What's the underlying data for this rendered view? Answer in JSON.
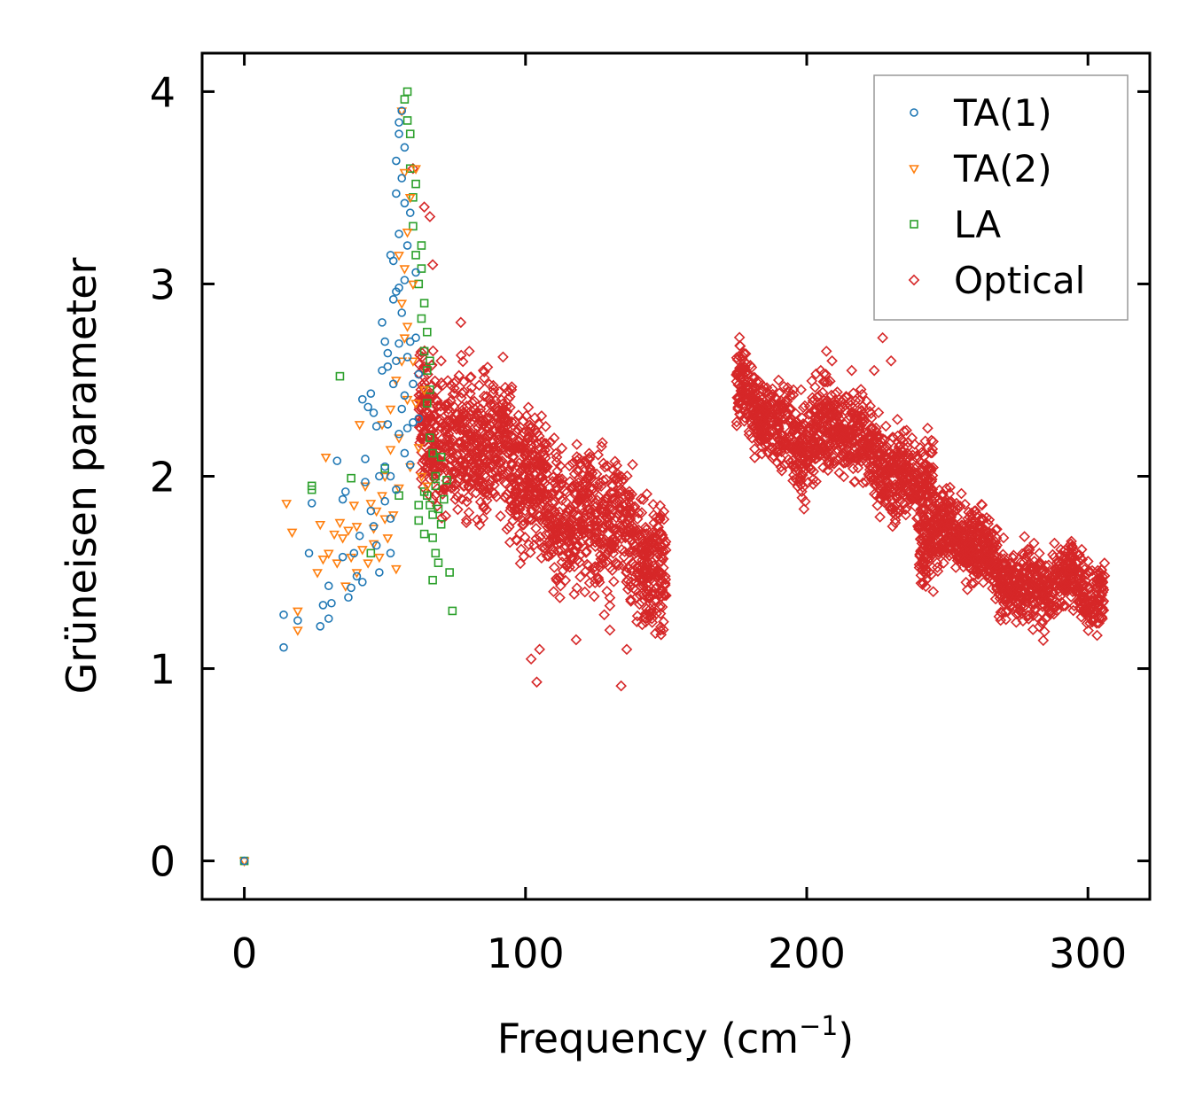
{
  "chart_data": {
    "type": "scatter",
    "title": "",
    "xlabel": "Frequency (cm",
    "xlabel_sup": "−1",
    "xlabel_end": ")",
    "ylabel": "Grüneisen parameter",
    "xlim": [
      -15,
      322
    ],
    "ylim": [
      -0.2,
      4.2
    ],
    "xticks": [
      0,
      100,
      200,
      300
    ],
    "xtick_labels": [
      "0",
      "100",
      "200",
      "300"
    ],
    "yticks": [
      0,
      1,
      2,
      3,
      4
    ],
    "ytick_labels": [
      "0",
      "1",
      "2",
      "3",
      "4"
    ],
    "grid": false,
    "legend_position": "top-right",
    "series": [
      {
        "name": "TA(1)",
        "marker": "circle",
        "color": "#1f77b4",
        "points": [
          [
            0,
            0
          ],
          [
            14,
            1.28
          ],
          [
            14,
            1.11
          ],
          [
            19,
            1.25
          ],
          [
            23,
            1.6
          ],
          [
            24,
            1.86
          ],
          [
            27,
            1.22
          ],
          [
            28,
            1.33
          ],
          [
            30,
            1.26
          ],
          [
            30,
            1.43
          ],
          [
            31,
            1.34
          ],
          [
            33,
            2.08
          ],
          [
            35,
            1.58
          ],
          [
            35,
            1.88
          ],
          [
            36,
            1.92
          ],
          [
            37,
            1.37
          ],
          [
            38,
            1.42
          ],
          [
            39,
            1.6
          ],
          [
            40,
            1.48
          ],
          [
            41,
            1.69
          ],
          [
            42,
            1.45
          ],
          [
            42,
            2.4
          ],
          [
            43,
            1.97
          ],
          [
            43,
            2.09
          ],
          [
            44,
            2.36
          ],
          [
            45,
            1.82
          ],
          [
            45,
            2.43
          ],
          [
            46,
            1.74
          ],
          [
            46,
            2.33
          ],
          [
            47,
            1.64
          ],
          [
            47,
            2.26
          ],
          [
            48,
            1.5
          ],
          [
            48,
            2.0
          ],
          [
            49,
            2.55
          ],
          [
            49,
            2.8
          ],
          [
            50,
            1.87
          ],
          [
            50,
            2.05
          ],
          [
            50,
            2.7
          ],
          [
            51,
            2.27
          ],
          [
            51,
            2.57
          ],
          [
            51,
            2.64
          ],
          [
            52,
            1.6
          ],
          [
            52,
            1.78
          ],
          [
            52,
            2.0
          ],
          [
            52,
            3.15
          ],
          [
            53,
            2.48
          ],
          [
            53,
            2.92
          ],
          [
            53,
            3.12
          ],
          [
            54,
            1.93
          ],
          [
            54,
            2.6
          ],
          [
            54,
            2.96
          ],
          [
            54,
            3.47
          ],
          [
            54,
            3.64
          ],
          [
            55,
            2.22
          ],
          [
            55,
            2.69
          ],
          [
            55,
            2.98
          ],
          [
            55,
            3.26
          ],
          [
            55,
            3.78
          ],
          [
            55,
            3.84
          ],
          [
            56,
            2.35
          ],
          [
            56,
            2.85
          ],
          [
            56,
            3.55
          ],
          [
            56,
            3.9
          ],
          [
            57,
            2.12
          ],
          [
            57,
            2.42
          ],
          [
            57,
            3.02
          ],
          [
            57,
            3.42
          ],
          [
            57,
            3.71
          ],
          [
            58,
            2.25
          ],
          [
            58,
            2.62
          ],
          [
            58,
            3.2
          ],
          [
            59,
            2.06
          ],
          [
            59,
            2.7
          ],
          [
            59,
            3.37
          ],
          [
            60,
            2.28
          ],
          [
            60,
            2.48
          ],
          [
            61,
            2.72
          ],
          [
            61,
            3.06
          ],
          [
            62,
            2.3
          ],
          [
            62,
            2.53
          ]
        ]
      },
      {
        "name": "TA(2)",
        "marker": "triangle-down",
        "color": "#ff7f0e",
        "points": [
          [
            0,
            0
          ],
          [
            15,
            1.86
          ],
          [
            17,
            1.71
          ],
          [
            19,
            1.3
          ],
          [
            19,
            1.2
          ],
          [
            26,
            1.5
          ],
          [
            27,
            1.75
          ],
          [
            28,
            1.57
          ],
          [
            29,
            2.1
          ],
          [
            30,
            1.6
          ],
          [
            32,
            1.7
          ],
          [
            33,
            1.55
          ],
          [
            34,
            1.76
          ],
          [
            35,
            1.68
          ],
          [
            36,
            1.43
          ],
          [
            37,
            1.72
          ],
          [
            38,
            1.58
          ],
          [
            39,
            1.85
          ],
          [
            40,
            1.74
          ],
          [
            40,
            1.5
          ],
          [
            41,
            2.27
          ],
          [
            42,
            1.62
          ],
          [
            43,
            1.95
          ],
          [
            44,
            1.55
          ],
          [
            45,
            1.86
          ],
          [
            46,
            1.73
          ],
          [
            46,
            1.65
          ],
          [
            47,
            1.82
          ],
          [
            48,
            1.58
          ],
          [
            49,
            1.9
          ],
          [
            49,
            2.27
          ],
          [
            50,
            1.78
          ],
          [
            50,
            2.0
          ],
          [
            51,
            1.68
          ],
          [
            52,
            2.14
          ],
          [
            52,
            2.35
          ],
          [
            53,
            1.8
          ],
          [
            54,
            2.5
          ],
          [
            54,
            1.52
          ],
          [
            55,
            1.94
          ],
          [
            55,
            2.2
          ],
          [
            55,
            3.15
          ],
          [
            56,
            2.6
          ],
          [
            56,
            2.9
          ],
          [
            56,
            3.9
          ],
          [
            57,
            2.72
          ],
          [
            57,
            3.08
          ],
          [
            57,
            3.58
          ],
          [
            58,
            2.4
          ],
          [
            58,
            2.78
          ],
          [
            58,
            3.27
          ],
          [
            59,
            2.05
          ],
          [
            59,
            3.45
          ],
          [
            60,
            2.6
          ],
          [
            60,
            3.0
          ],
          [
            61,
            2.38
          ],
          [
            61,
            3.6
          ],
          [
            62,
            2.15
          ],
          [
            63,
            2.0
          ],
          [
            64,
            2.45
          ],
          [
            65,
            1.95
          ]
        ]
      },
      {
        "name": "LA",
        "marker": "square",
        "color": "#2ca02c",
        "points": [
          [
            0,
            0
          ],
          [
            24,
            1.93
          ],
          [
            24,
            1.95
          ],
          [
            34,
            2.52
          ],
          [
            38,
            1.99
          ],
          [
            45,
            1.6
          ],
          [
            50,
            2.04
          ],
          [
            55,
            1.9
          ],
          [
            57,
            3.96
          ],
          [
            58,
            4.0
          ],
          [
            58,
            3.85
          ],
          [
            59,
            3.78
          ],
          [
            59,
            3.6
          ],
          [
            60,
            3.45
          ],
          [
            60,
            3.3
          ],
          [
            61,
            3.52
          ],
          [
            61,
            3.15
          ],
          [
            62,
            3.0
          ],
          [
            62,
            1.77
          ],
          [
            62,
            1.85
          ],
          [
            63,
            2.82
          ],
          [
            63,
            3.2
          ],
          [
            63,
            3.08
          ],
          [
            64,
            2.65
          ],
          [
            64,
            2.9
          ],
          [
            64,
            1.92
          ],
          [
            64,
            1.7
          ],
          [
            65,
            2.55
          ],
          [
            65,
            2.75
          ],
          [
            65,
            2.38
          ],
          [
            65,
            1.9
          ],
          [
            66,
            2.2
          ],
          [
            66,
            2.6
          ],
          [
            66,
            2.45
          ],
          [
            66,
            1.85
          ],
          [
            67,
            2.12
          ],
          [
            67,
            1.8
          ],
          [
            67,
            1.68
          ],
          [
            67,
            1.46
          ],
          [
            68,
            2.0
          ],
          [
            68,
            1.95
          ],
          [
            68,
            1.6
          ],
          [
            69,
            1.83
          ],
          [
            69,
            1.55
          ],
          [
            70,
            1.75
          ],
          [
            70,
            2.1
          ],
          [
            71,
            1.88
          ],
          [
            72,
            1.98
          ],
          [
            73,
            1.5
          ],
          [
            74,
            1.3
          ]
        ]
      },
      {
        "name": "Optical",
        "marker": "diamond",
        "color": "#d62728",
        "points": [],
        "clusters": [
          {
            "x": [
              62,
              150
            ],
            "y_start": [
              2.35,
              1.5
            ],
            "spread": 0.48,
            "count": 1500
          },
          {
            "x": [
              175,
              245
            ],
            "y_start": [
              2.38,
              2.0
            ],
            "spread": 0.32,
            "count": 1100
          },
          {
            "x": [
              240,
              306
            ],
            "y_start": [
              1.7,
              1.33
            ],
            "spread": 0.26,
            "count": 1000
          }
        ],
        "outliers": [
          [
            60,
            3.6
          ],
          [
            64,
            3.4
          ],
          [
            66,
            3.35
          ],
          [
            67,
            3.1
          ],
          [
            70,
            2.6
          ],
          [
            77,
            2.8
          ],
          [
            80,
            2.65
          ],
          [
            85,
            2.55
          ],
          [
            87,
            2.4
          ],
          [
            92,
            2.62
          ],
          [
            95,
            2.45
          ],
          [
            98,
            1.83
          ],
          [
            102,
            1.05
          ],
          [
            104,
            0.93
          ],
          [
            105,
            1.1
          ],
          [
            110,
            1.4
          ],
          [
            118,
            1.15
          ],
          [
            122,
            1.96
          ],
          [
            128,
            1.28
          ],
          [
            130,
            1.2
          ],
          [
            134,
            0.91
          ],
          [
            136,
            1.1
          ],
          [
            138,
            1.55
          ],
          [
            143,
            1.28
          ],
          [
            150,
            1.38
          ],
          [
            175,
            2.53
          ],
          [
            190,
            2.5
          ],
          [
            198,
            2.45
          ],
          [
            205,
            2.55
          ],
          [
            207,
            2.65
          ],
          [
            209,
            2.6
          ],
          [
            213,
            2.4
          ],
          [
            216,
            2.55
          ],
          [
            219,
            2.12
          ],
          [
            224,
            2.55
          ],
          [
            227,
            2.72
          ],
          [
            230,
            2.6
          ],
          [
            235,
            1.95
          ],
          [
            243,
            2.25
          ],
          [
            245,
            1.4
          ],
          [
            255,
            1.91
          ],
          [
            260,
            1.82
          ],
          [
            270,
            1.68
          ],
          [
            279,
            1.6
          ],
          [
            285,
            1.26
          ],
          [
            295,
            1.45
          ],
          [
            305,
            1.3
          ]
        ]
      }
    ]
  }
}
